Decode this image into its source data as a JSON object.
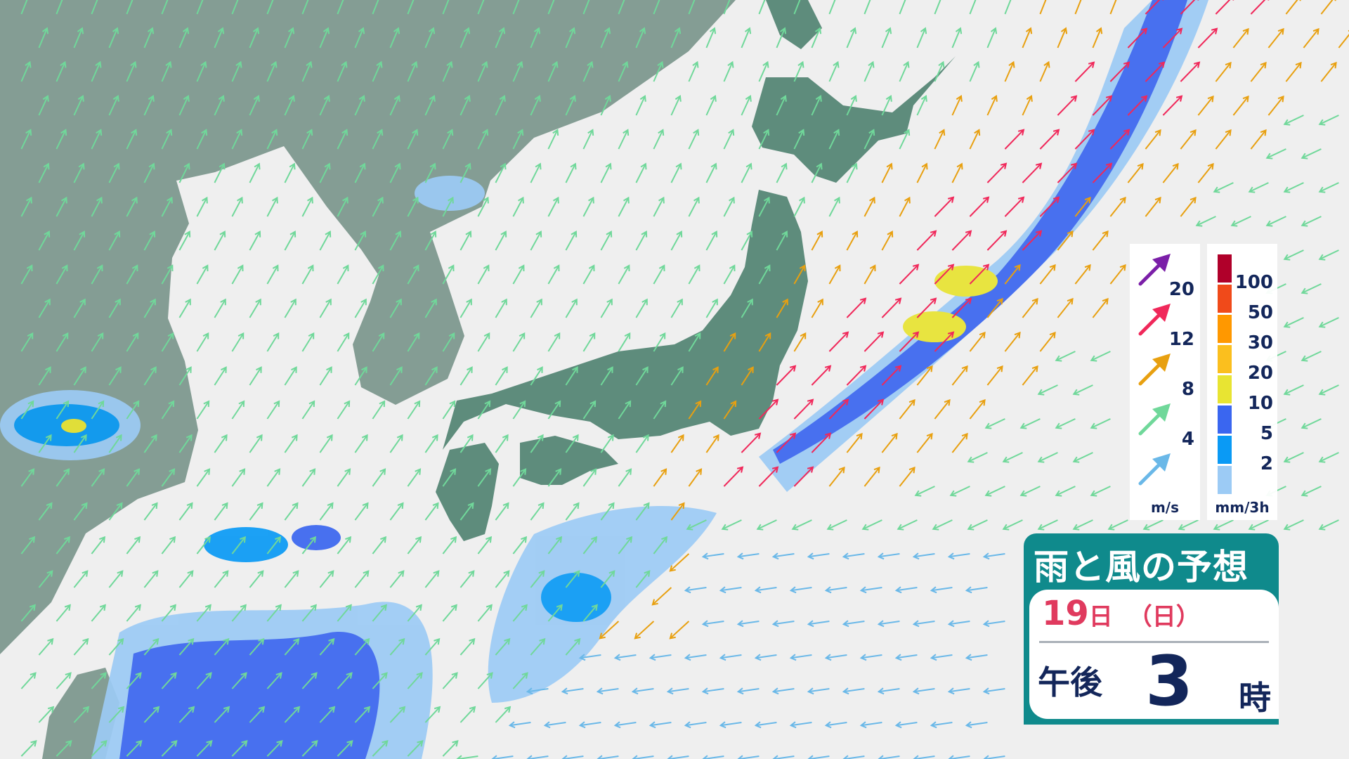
{
  "title": "雨と風の予想",
  "date": {
    "day": "19",
    "day_unit": "日",
    "weekday": "（日）"
  },
  "time": {
    "period": "午後",
    "hour": "3",
    "hour_unit": "時"
  },
  "wind_legend": {
    "unit": "m/s",
    "items": [
      {
        "value": "20",
        "color": "#7b1fa8"
      },
      {
        "value": "12",
        "color": "#f0285a"
      },
      {
        "value": "8",
        "color": "#e8a010"
      },
      {
        "value": "4",
        "color": "#70d89a"
      },
      {
        "value": "",
        "color": "#6ab8e8"
      }
    ]
  },
  "rain_legend": {
    "unit": "mm/3h",
    "colors": [
      "#b0002a",
      "#f04a1a",
      "#ff9800",
      "#fbbf1e",
      "#e8e432",
      "#3a66f0",
      "#0a9af5",
      "#9ccbf5"
    ],
    "labels": [
      "100",
      "50",
      "30",
      "20",
      "10",
      "5",
      "2"
    ]
  },
  "map_colors": {
    "sea": "#efefef",
    "land": "#7f9a90",
    "japan": "#5e8c7c"
  }
}
